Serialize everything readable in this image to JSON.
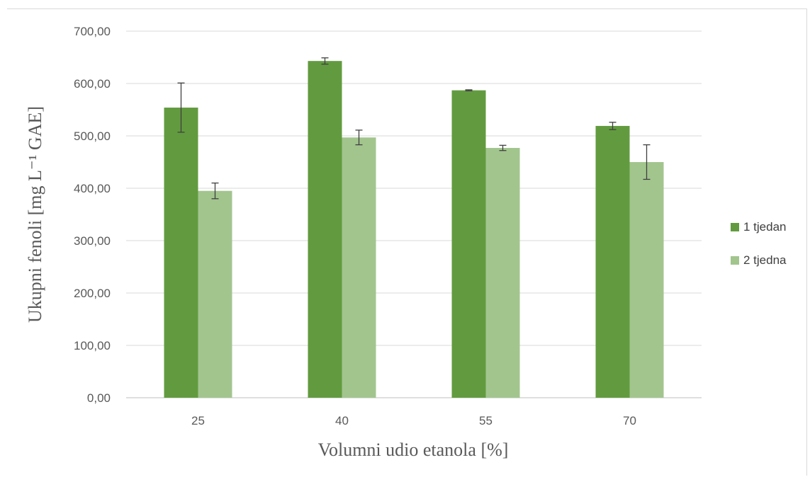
{
  "chart_data": {
    "type": "bar",
    "categories": [
      "25",
      "40",
      "55",
      "70"
    ],
    "series": [
      {
        "name": "1 tjedan",
        "values": [
          554,
          643,
          587,
          519
        ],
        "error": [
          47,
          6,
          1,
          7
        ],
        "color": "#629b3f"
      },
      {
        "name": "2 tjedna",
        "values": [
          395,
          497,
          477,
          450
        ],
        "error": [
          15,
          14,
          5,
          33
        ],
        "color": "#a2c58e"
      }
    ],
    "xlabel": "Volumni udio etanola [%]",
    "ylabel": "Ukupni fenoli [mg L⁻¹ GAE]",
    "ylim": [
      0,
      700
    ],
    "yticks": [
      "0,00",
      "100,00",
      "200,00",
      "300,00",
      "400,00",
      "500,00",
      "600,00",
      "700,00"
    ],
    "grid": true,
    "legend": "right"
  }
}
